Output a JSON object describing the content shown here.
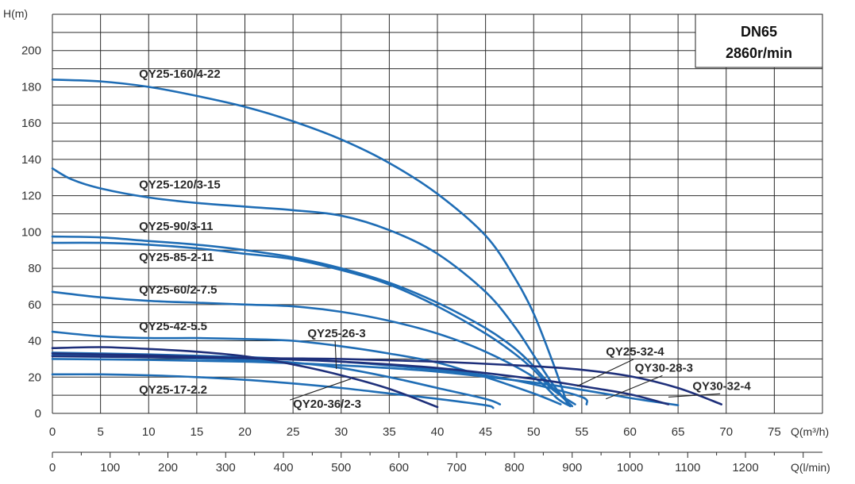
{
  "chart_data": {
    "type": "line",
    "title": "",
    "info_box": [
      "DN65",
      "2860r/min"
    ],
    "ylabel": "H(m)",
    "xlabel": "Q(m³/h)",
    "x2label": "Q(l/min)",
    "xlim": [
      0,
      80
    ],
    "ylim": [
      0,
      220
    ],
    "x_ticks": [
      0,
      5,
      10,
      15,
      20,
      25,
      30,
      35,
      40,
      45,
      50,
      55,
      60,
      65,
      70,
      75
    ],
    "y_ticks": [
      0,
      20,
      40,
      60,
      80,
      100,
      120,
      140,
      160,
      180,
      200
    ],
    "x2_ticks": [
      0,
      100,
      200,
      300,
      400,
      500,
      600,
      700,
      800,
      900,
      1000,
      1100,
      1200
    ],
    "grid": true,
    "series": [
      {
        "name": "QY25-160/4-22",
        "color": "#1f6db5",
        "points": [
          [
            0,
            184
          ],
          [
            5,
            183
          ],
          [
            10,
            180
          ],
          [
            15,
            175
          ],
          [
            20,
            169
          ],
          [
            25,
            161
          ],
          [
            30,
            151
          ],
          [
            35,
            138
          ],
          [
            40,
            121
          ],
          [
            45,
            98
          ],
          [
            48,
            75
          ],
          [
            50,
            55
          ],
          [
            52,
            28
          ],
          [
            53.5,
            5
          ]
        ]
      },
      {
        "name": "QY25-120/3-15",
        "color": "#1f6db5",
        "points": [
          [
            0,
            135
          ],
          [
            2,
            129
          ],
          [
            5,
            124
          ],
          [
            10,
            119
          ],
          [
            15,
            116
          ],
          [
            20,
            114
          ],
          [
            25,
            112
          ],
          [
            30,
            109
          ],
          [
            35,
            101
          ],
          [
            40,
            88
          ],
          [
            45,
            67
          ],
          [
            48,
            48
          ],
          [
            50,
            32
          ],
          [
            52,
            16
          ],
          [
            53.8,
            4
          ]
        ]
      },
      {
        "name": "QY25-90/3-11",
        "color": "#1f6db5",
        "points": [
          [
            0,
            97.5
          ],
          [
            5,
            97
          ],
          [
            10,
            95
          ],
          [
            15,
            93
          ],
          [
            20,
            90
          ],
          [
            25,
            86
          ],
          [
            30,
            80
          ],
          [
            35,
            72
          ],
          [
            40,
            61
          ],
          [
            45,
            47
          ],
          [
            48,
            36
          ],
          [
            50,
            26
          ],
          [
            52,
            14
          ],
          [
            54,
            4
          ]
        ]
      },
      {
        "name": "QY25-85-2-11",
        "color": "#1f6db5",
        "points": [
          [
            0,
            94
          ],
          [
            5,
            94
          ],
          [
            10,
            93
          ],
          [
            15,
            91
          ],
          [
            20,
            88
          ],
          [
            25,
            85
          ],
          [
            30,
            79
          ],
          [
            35,
            71
          ],
          [
            40,
            59
          ],
          [
            45,
            44
          ],
          [
            48,
            33
          ],
          [
            50,
            24
          ],
          [
            52,
            13
          ],
          [
            54.3,
            5
          ]
        ]
      },
      {
        "name": "QY25-60/2-7.5",
        "color": "#1f6db5",
        "points": [
          [
            0,
            67
          ],
          [
            5,
            64
          ],
          [
            10,
            62
          ],
          [
            15,
            61
          ],
          [
            20,
            60
          ],
          [
            25,
            59
          ],
          [
            30,
            56
          ],
          [
            35,
            51
          ],
          [
            40,
            44
          ],
          [
            45,
            34
          ],
          [
            50,
            20
          ],
          [
            52.5,
            8
          ],
          [
            53.8,
            4
          ]
        ]
      },
      {
        "name": "QY25-42-5.5",
        "color": "#1f6db5",
        "points": [
          [
            0,
            45
          ],
          [
            5,
            42.5
          ],
          [
            10,
            41.5
          ],
          [
            15,
            41.5
          ],
          [
            20,
            41
          ],
          [
            25,
            40
          ],
          [
            30,
            37
          ],
          [
            35,
            33
          ],
          [
            40,
            28
          ],
          [
            45,
            20
          ],
          [
            50,
            11
          ],
          [
            52.8,
            5
          ]
        ]
      },
      {
        "name": "QY25-32-4",
        "color": "#1f6db5",
        "points": [
          [
            0,
            33.5
          ],
          [
            10,
            32.5
          ],
          [
            20,
            31
          ],
          [
            30,
            28.5
          ],
          [
            40,
            24
          ],
          [
            45,
            21
          ],
          [
            50,
            16
          ],
          [
            55,
            9
          ],
          [
            55.5,
            5
          ]
        ]
      },
      {
        "name": "QY30-28-3",
        "color": "#1f6db5",
        "points": [
          [
            0,
            30
          ],
          [
            10,
            29.5
          ],
          [
            20,
            28.5
          ],
          [
            30,
            26.5
          ],
          [
            40,
            23
          ],
          [
            50,
            17
          ],
          [
            55,
            13
          ],
          [
            60,
            8.5
          ],
          [
            65,
            4.5
          ]
        ]
      },
      {
        "name": "QY25-26-3",
        "color": "#1f6db5",
        "points": [
          [
            0,
            32
          ],
          [
            10,
            31
          ],
          [
            20,
            29.5
          ],
          [
            25,
            28
          ],
          [
            30,
            25
          ],
          [
            35,
            20
          ],
          [
            40,
            14
          ],
          [
            45,
            8
          ],
          [
            46.5,
            5
          ]
        ]
      },
      {
        "name": "QY25-17-2.2",
        "color": "#1f6db5",
        "points": [
          [
            0,
            21.5
          ],
          [
            5,
            21.5
          ],
          [
            10,
            21
          ],
          [
            15,
            20
          ],
          [
            20,
            18.5
          ],
          [
            25,
            16.5
          ],
          [
            30,
            14
          ],
          [
            35,
            11
          ],
          [
            40,
            8
          ],
          [
            45,
            4.5
          ],
          [
            45.8,
            3
          ]
        ]
      },
      {
        "name": "QY20-36/2-3",
        "color": "#1e2f7a",
        "points": [
          [
            0,
            36
          ],
          [
            5,
            36.5
          ],
          [
            10,
            35.5
          ],
          [
            15,
            34
          ],
          [
            20,
            31.5
          ],
          [
            25,
            27
          ],
          [
            30,
            21
          ],
          [
            35,
            13.5
          ],
          [
            40,
            3.5
          ]
        ]
      },
      {
        "name": "QY30-32-4",
        "color": "#1e2f7a",
        "points": [
          [
            0,
            31.5
          ],
          [
            10,
            31
          ],
          [
            20,
            30.5
          ],
          [
            30,
            30
          ],
          [
            40,
            28.5
          ],
          [
            50,
            26
          ],
          [
            55,
            24
          ],
          [
            60,
            20.5
          ],
          [
            65,
            14
          ],
          [
            69.5,
            5
          ]
        ]
      },
      {
        "name": "navy-secondary-curve",
        "color": "#1e2f7a",
        "points": [
          [
            0,
            33
          ],
          [
            10,
            32
          ],
          [
            20,
            30.5
          ],
          [
            30,
            28.5
          ],
          [
            40,
            25
          ],
          [
            50,
            19
          ],
          [
            55,
            15
          ],
          [
            60,
            10.5
          ],
          [
            64,
            5
          ]
        ]
      }
    ],
    "labels": [
      {
        "text": "QY25-160/4-22",
        "at": [
          9,
          185
        ]
      },
      {
        "text": "QY25-120/3-15",
        "at": [
          9,
          124
        ]
      },
      {
        "text": "QY25-90/3-11",
        "at": [
          9,
          101
        ]
      },
      {
        "text": "QY25-85-2-11",
        "at": [
          9,
          84
        ]
      },
      {
        "text": "QY25-60/2-7.5",
        "at": [
          9,
          66
        ]
      },
      {
        "text": "QY25-42-5.5",
        "at": [
          9,
          46
        ]
      },
      {
        "text": "QY25-17-2.2",
        "at": [
          9,
          11
        ]
      },
      {
        "text": "QY25-26-3",
        "at": [
          26.5,
          42
        ],
        "arrow_to": [
          29.5,
          24.5
        ]
      },
      {
        "text": "QY20-36/2-3",
        "at": [
          25,
          3
        ],
        "arrow_to": [
          31,
          19
        ]
      },
      {
        "text": "QY25-32-4",
        "at": [
          57.5,
          32
        ],
        "arrow_to": [
          54.5,
          15
        ]
      },
      {
        "text": "QY30-28-3",
        "at": [
          60.5,
          23
        ],
        "arrow_to": [
          57.5,
          8
        ]
      },
      {
        "text": "QY30-32-4",
        "at": [
          66.5,
          13
        ],
        "arrow_to": [
          64,
          9
        ]
      }
    ]
  }
}
